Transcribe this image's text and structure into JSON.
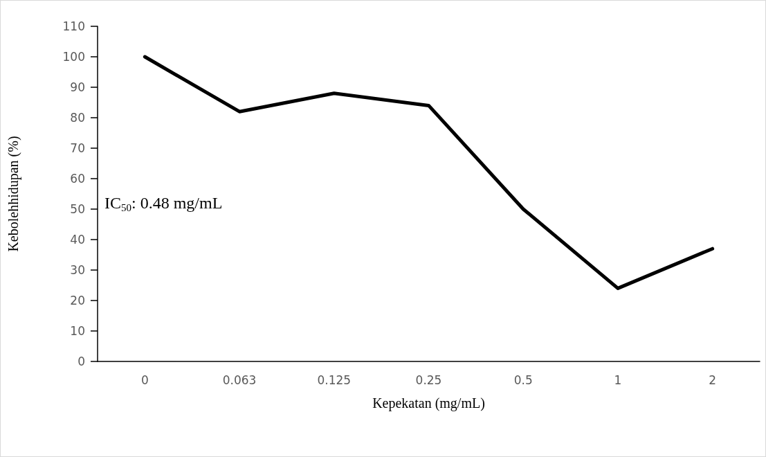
{
  "chart_data": {
    "type": "line",
    "xlabel": "Kepekatan (mg/mL)",
    "ylabel": "Kebolehhidupan (%)",
    "categories": [
      "0",
      "0.063",
      "0.125",
      "0.25",
      "0.5",
      "1",
      "2"
    ],
    "series": [
      {
        "color": "#000000",
        "values": [
          100,
          82,
          88,
          84,
          50,
          24,
          37
        ]
      }
    ],
    "ylim": [
      0,
      110
    ],
    "yticks": [
      0,
      10,
      20,
      30,
      40,
      50,
      60,
      70,
      80,
      90,
      100,
      110
    ],
    "grid": false,
    "marker": "none",
    "line_style": "solid",
    "annotations": [
      "IC$_{50}$: 0.48 mg/mL"
    ]
  }
}
